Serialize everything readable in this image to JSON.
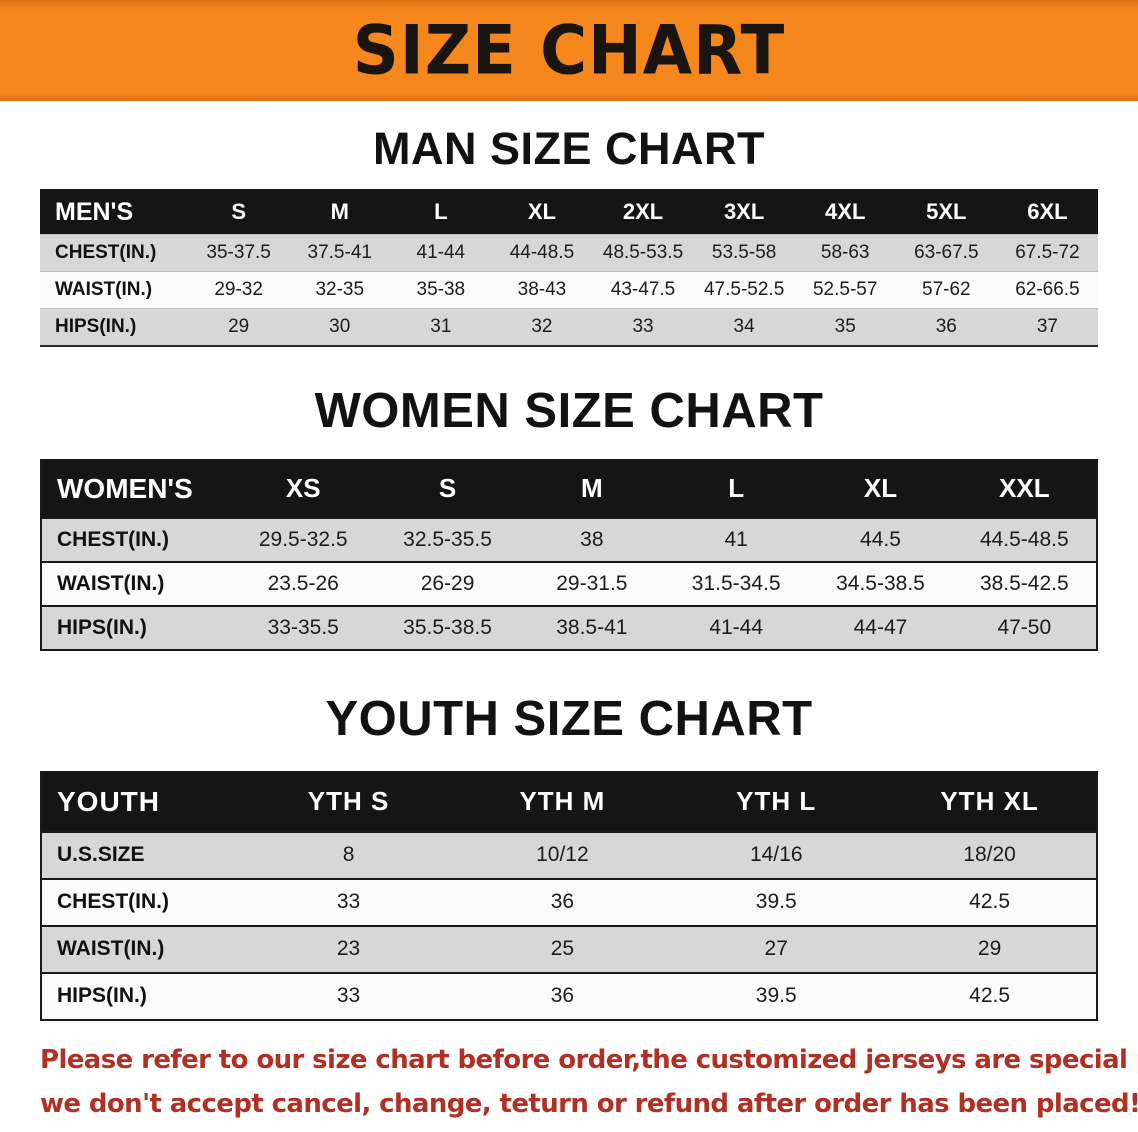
{
  "colors": {
    "banner_bg": "#f6871d",
    "banner_edge": "#db7410",
    "table_header_bg": "#151515",
    "row_alt_bg": "#d7d7d7",
    "row_bg": "#fbfbfb",
    "footer_text": "#b03024"
  },
  "banner": {
    "title": "SIZE CHART"
  },
  "sections": [
    {
      "id": "men",
      "heading": "MAN SIZE CHART",
      "table": {
        "header": [
          "MEN'S",
          "S",
          "M",
          "L",
          "XL",
          "2XL",
          "3XL",
          "4XL",
          "5XL",
          "6XL"
        ],
        "rows": [
          [
            "CHEST(IN.)",
            "35-37.5",
            "37.5-41",
            "41-44",
            "44-48.5",
            "48.5-53.5",
            "53.5-58",
            "58-63",
            "63-67.5",
            "67.5-72"
          ],
          [
            "WAIST(IN.)",
            "29-32",
            "32-35",
            "35-38",
            "38-43",
            "43-47.5",
            "47.5-52.5",
            "52.5-57",
            "57-62",
            "62-66.5"
          ],
          [
            "HIPS(IN.)",
            "29",
            "30",
            "31",
            "32",
            "33",
            "34",
            "35",
            "36",
            "37"
          ]
        ]
      }
    },
    {
      "id": "women",
      "heading": "WOMEN SIZE CHART",
      "table": {
        "header": [
          "WOMEN'S",
          "XS",
          "S",
          "M",
          "L",
          "XL",
          "XXL"
        ],
        "rows": [
          [
            "CHEST(IN.)",
            "29.5-32.5",
            "32.5-35.5",
            "38",
            "41",
            "44.5",
            "44.5-48.5"
          ],
          [
            "WAIST(IN.)",
            "23.5-26",
            "26-29",
            "29-31.5",
            "31.5-34.5",
            "34.5-38.5",
            "38.5-42.5"
          ],
          [
            "HIPS(IN.)",
            "33-35.5",
            "35.5-38.5",
            "38.5-41",
            "41-44",
            "44-47",
            "47-50"
          ]
        ]
      }
    },
    {
      "id": "youth",
      "heading": "YOUTH SIZE CHART",
      "table": {
        "header": [
          "YOUTH",
          "YTH S",
          "YTH M",
          "YTH L",
          "YTH XL"
        ],
        "rows": [
          [
            "U.S.SIZE",
            "8",
            "10/12",
            "14/16",
            "18/20"
          ],
          [
            "CHEST(IN.)",
            "33",
            "36",
            "39.5",
            "42.5"
          ],
          [
            "WAIST(IN.)",
            "23",
            "25",
            "27",
            "29"
          ],
          [
            "HIPS(IN.)",
            "33",
            "36",
            "39.5",
            "42.5"
          ]
        ]
      }
    }
  ],
  "footer": {
    "lines": [
      "Please refer to our size chart before order,the customized jerseys are special products,",
      "we don't accept cancel, change, teturn or refund after order has been placed!"
    ]
  }
}
